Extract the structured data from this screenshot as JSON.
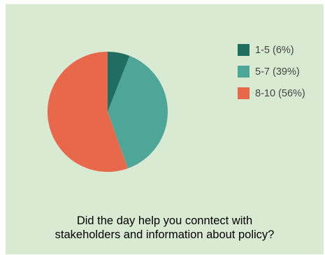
{
  "chart_data": {
    "type": "pie",
    "title": "Did the day help you conntect with stakeholders and information about policy?",
    "title_lines": [
      "Did the day help you conntect with",
      "stakeholders and information about policy?"
    ],
    "slices": [
      {
        "label": "1-5 (6%)",
        "value": 6,
        "color": "#1f6e5f"
      },
      {
        "label": "5-7 (39%)",
        "value": 39,
        "color": "#4ea699"
      },
      {
        "label": "8-10 (56%)",
        "value": 56,
        "color": "#e8684c"
      }
    ],
    "legend_position": "right"
  },
  "background_color": "#d9ead3"
}
